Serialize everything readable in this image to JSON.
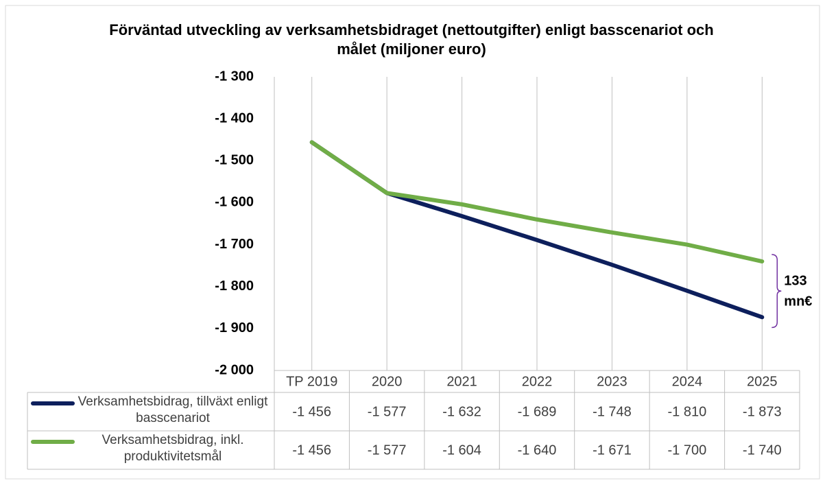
{
  "chart_data": {
    "type": "line",
    "title": "Förväntad utveckling av verksamhetsbidraget (nettoutgifter) enligt basscenariot och målet (miljoner euro)",
    "categories": [
      "TP 2019",
      "2020",
      "2021",
      "2022",
      "2023",
      "2024",
      "2025"
    ],
    "series": [
      {
        "name": "Verksamhetsbidrag, tillväxt enligt basscenariot",
        "color": "#0d1f5c",
        "values": [
          -1456,
          -1577,
          -1632,
          -1689,
          -1748,
          -1810,
          -1873
        ],
        "value_labels": [
          "-1 456",
          "-1 577",
          "-1 632",
          "-1 689",
          "-1 748",
          "-1 810",
          "-1 873"
        ]
      },
      {
        "name": "Verksamhetsbidrag, inkl. produktivitetsmål",
        "color": "#70ad47",
        "values": [
          -1456,
          -1577,
          -1604,
          -1640,
          -1671,
          -1700,
          -1740
        ],
        "value_labels": [
          "-1 456",
          "-1 577",
          "-1 604",
          "-1 640",
          "-1 671",
          "-1 700",
          "-1 740"
        ]
      }
    ],
    "ylim": [
      -2000,
      -1300
    ],
    "yticks": [
      {
        "value": -2000,
        "label": "-2 000"
      },
      {
        "value": -1900,
        "label": "-1 900"
      },
      {
        "value": -1800,
        "label": "-1 800"
      },
      {
        "value": -1700,
        "label": "-1 700"
      },
      {
        "value": -1600,
        "label": "-1 600"
      },
      {
        "value": -1500,
        "label": "-1 500"
      },
      {
        "value": -1400,
        "label": "-1 400"
      },
      {
        "value": -1300,
        "label": "-1 300"
      }
    ],
    "annotation_lines": [
      "133",
      "mn€"
    ],
    "grid": "vertical",
    "data_table": true
  }
}
